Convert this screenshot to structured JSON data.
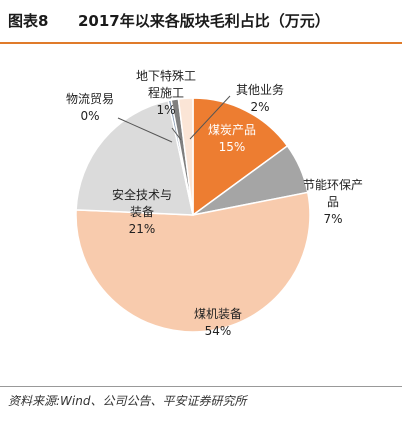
{
  "header": {
    "figure_label": "图表8",
    "title": "2017年以来各版块毛利占比（万元）"
  },
  "footer": {
    "source": "资料来源:Wind、公司公告、平安证券研究所"
  },
  "colors": {
    "accent": "#e07b2a"
  },
  "chart_data": {
    "type": "pie",
    "title": "2017年以来各版块毛利占比（万元）",
    "start_angle_deg": 0,
    "direction": "clockwise",
    "slices": [
      {
        "name": "煤炭产品",
        "label_lines": [
          "煤炭产品",
          "15%"
        ],
        "value": 15,
        "color": "#ed7d31",
        "label_color": "#ffffff",
        "label_pos": "inside"
      },
      {
        "name": "节能环保产品",
        "label_lines": [
          "节能环保产",
          "品",
          "7%"
        ],
        "value": 7,
        "color": "#a5a5a5",
        "label_color": "#222222",
        "label_pos": "outside"
      },
      {
        "name": "煤机装备",
        "label_lines": [
          "煤机装备",
          "54%"
        ],
        "value": 54,
        "color": "#f8cbad",
        "label_color": "#222222",
        "label_pos": "inside"
      },
      {
        "name": "安全技术与装备",
        "label_lines": [
          "安全技术与",
          "装备",
          "21%"
        ],
        "value": 21,
        "color": "#dbdbdb",
        "label_color": "#222222",
        "label_pos": "inside"
      },
      {
        "name": "物流贸易",
        "label_lines": [
          "物流贸易",
          "0%"
        ],
        "value": 0.4,
        "color": "#8497b0",
        "label_color": "#222222",
        "label_pos": "outside"
      },
      {
        "name": "地下特殊工程施工",
        "label_lines": [
          "地下特殊工",
          "程施工",
          "1%"
        ],
        "value": 1,
        "color": "#7f7f7f",
        "label_color": "#222222",
        "label_pos": "outside"
      },
      {
        "name": "其他业务",
        "label_lines": [
          "其他业务",
          "2%"
        ],
        "value": 2,
        "color": "#fbe5d6",
        "label_color": "#222222",
        "label_pos": "outside"
      }
    ]
  }
}
